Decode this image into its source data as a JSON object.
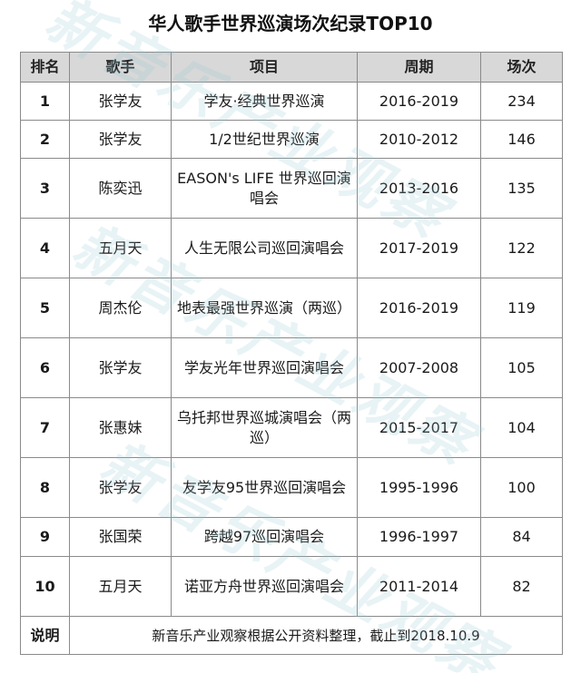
{
  "title": "华人歌手世界巡演场次纪录TOP10",
  "watermark_text": "新音乐产业观察",
  "columns": [
    "排名",
    "歌手",
    "项目",
    "周期",
    "场次"
  ],
  "rows": [
    {
      "rank": "1",
      "singer": "张学友",
      "project": "学友·经典世界巡演",
      "period": "2016-2019",
      "shows": "234"
    },
    {
      "rank": "2",
      "singer": "张学友",
      "project": "1/2世纪世界巡演",
      "period": "2010-2012",
      "shows": "146"
    },
    {
      "rank": "3",
      "singer": "陈奕迅",
      "project": "EASON's LIFE 世界巡回演唱会",
      "period": "2013-2016",
      "shows": "135"
    },
    {
      "rank": "4",
      "singer": "五月天",
      "project": "人生无限公司巡回演唱会",
      "period": "2017-2019",
      "shows": "122"
    },
    {
      "rank": "5",
      "singer": "周杰伦",
      "project": "地表最强世界巡演（两巡）",
      "period": "2016-2019",
      "shows": "119"
    },
    {
      "rank": "6",
      "singer": "张学友",
      "project": "学友光年世界巡回演唱会",
      "period": "2007-2008",
      "shows": "105"
    },
    {
      "rank": "7",
      "singer": "张惠妹",
      "project": "乌托邦世界巡城演唱会（两巡）",
      "period": "2015-2017",
      "shows": "104"
    },
    {
      "rank": "8",
      "singer": "张学友",
      "project": "友学友95世界巡回演唱会",
      "period": "1995-1996",
      "shows": "100"
    },
    {
      "rank": "9",
      "singer": "张国荣",
      "project": "跨越97巡回演唱会",
      "period": "1996-1997",
      "shows": "84"
    },
    {
      "rank": "10",
      "singer": "五月天",
      "project": "诺亚方舟世界巡回演唱会",
      "period": "2011-2014",
      "shows": "82"
    }
  ],
  "note": {
    "label": "说明",
    "text": "新音乐产业观察根据公开资料整理，截止到2018.10.9"
  }
}
